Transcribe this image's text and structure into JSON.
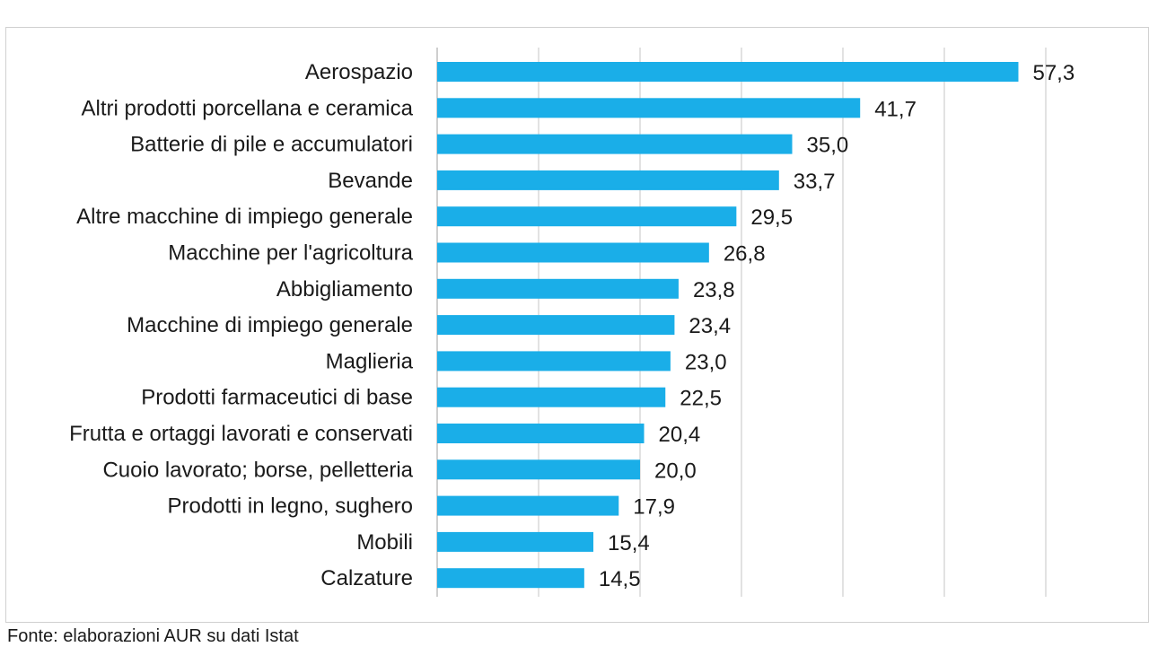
{
  "chart_data": {
    "type": "bar",
    "orientation": "horizontal",
    "categories": [
      "Aerospazio",
      "Altri prodotti porcellana e ceramica",
      "Batterie di pile e accumulatori",
      "Bevande",
      "Altre macchine di impiego generale",
      "Macchine per l'agricoltura",
      "Abbigliamento",
      "Macchine di impiego generale",
      "Maglieria",
      "Prodotti farmaceutici di base",
      "Frutta e ortaggi lavorati e conservati",
      "Cuoio lavorato; borse, pelletteria",
      "Prodotti in legno, sughero",
      "Mobili",
      "Calzature"
    ],
    "values": [
      57.3,
      41.7,
      35.0,
      33.7,
      29.5,
      26.8,
      23.8,
      23.4,
      23.0,
      22.5,
      20.4,
      20.0,
      17.9,
      15.4,
      14.5
    ],
    "value_labels": [
      "57,3",
      "41,7",
      "35,0",
      "33,7",
      "29,5",
      "26,8",
      "23,8",
      "23,4",
      "23,0",
      "22,5",
      "20,4",
      "20,0",
      "17,9",
      "15,4",
      "14,5"
    ],
    "xlim": [
      0,
      70
    ],
    "grid": true,
    "bar_color": "#1aaee8"
  },
  "source_note": "Fonte: elaborazioni AUR su dati Istat"
}
